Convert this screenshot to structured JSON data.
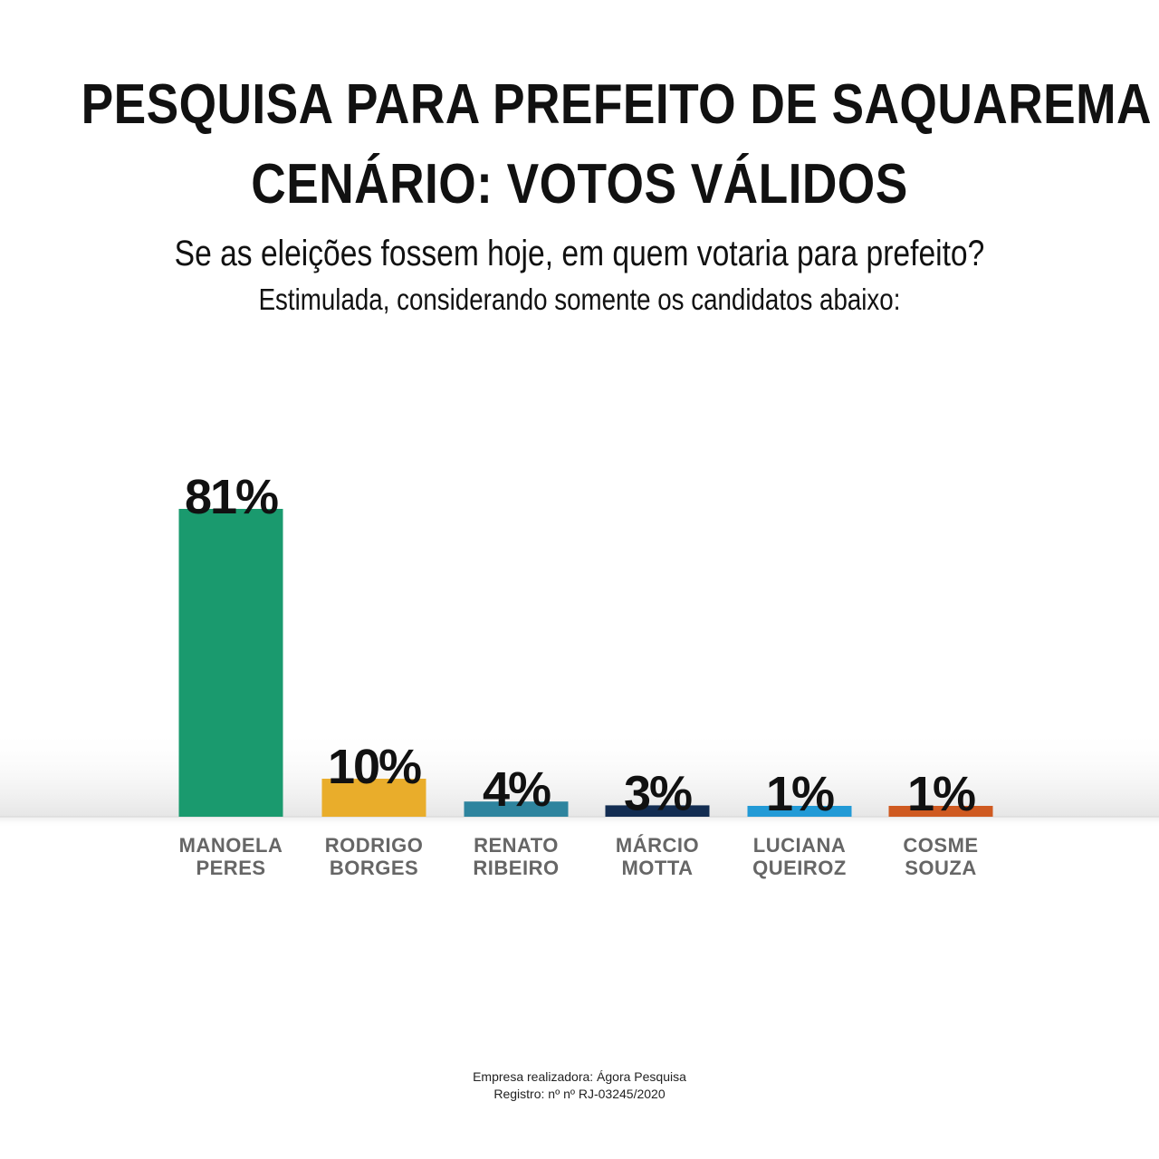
{
  "header": {
    "title_line1": "PESQUISA PARA PREFEITO DE SAQUAREMA",
    "title_line2": "CENÁRIO: VOTOS VÁLIDOS",
    "subtitle_line1": "Se as eleições fossem hoje, em quem votaria para prefeito?",
    "subtitle_line2": "Estimulada, considerando somente os candidatos abaixo:"
  },
  "chart_data": {
    "type": "bar",
    "title": "PESQUISA PARA PREFEITO DE SAQUAREMA",
    "categories": [
      [
        "MANOELA",
        "PERES"
      ],
      [
        "RODRIGO",
        "BORGES"
      ],
      [
        "RENATO",
        "RIBEIRO"
      ],
      [
        "MÁRCIO",
        "MOTTA"
      ],
      [
        "LUCIANA",
        "QUEIROZ"
      ],
      [
        "COSME",
        "SOUZA"
      ]
    ],
    "values": [
      81,
      10,
      4,
      3,
      1,
      1
    ],
    "value_labels": [
      "81%",
      "10%",
      "4%",
      "3%",
      "1%",
      "1%"
    ],
    "colors": [
      "#1a9a6e",
      "#e9ad2b",
      "#2e849e",
      "#132d52",
      "#229ad6",
      "#cf5a21"
    ],
    "ylim": [
      0,
      81
    ],
    "grid": false,
    "legend": "none"
  },
  "footer": {
    "line1": "Empresa realizadora: Ágora Pesquisa",
    "line2": "Registro: nº nº RJ-03245/2020"
  }
}
